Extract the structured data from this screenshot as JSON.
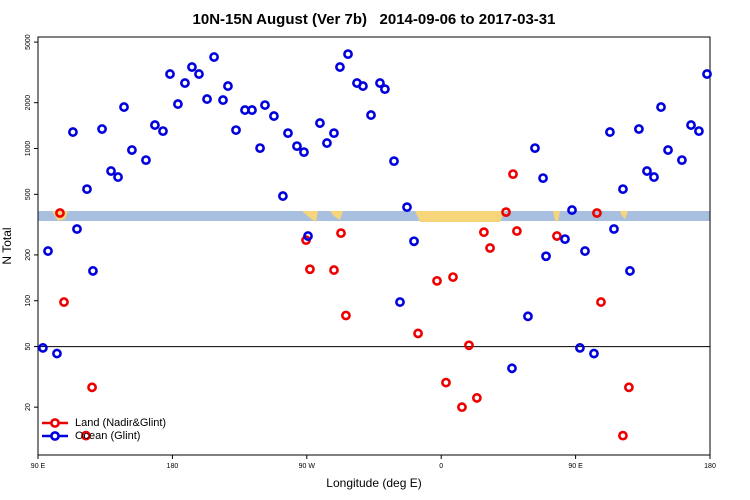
{
  "chart_data": {
    "type": "scatter",
    "title": "10N-15N August (Ver 7b)   2014-09-06 to 2017-03-31",
    "x_label": "Longitude (deg E)",
    "y_label": "N Total",
    "log_y": true,
    "xlim": [
      90,
      540
    ],
    "ylim": [
      9.7,
      5400
    ],
    "xticks": [
      {
        "value": 90,
        "label": "90 E"
      },
      180,
      {
        "value": 270,
        "label": "90 W"
      },
      {
        "value": 360,
        "label": "0"
      },
      {
        "value": 450,
        "label": "90 E"
      },
      {
        "value": 540,
        "label": "180"
      }
    ],
    "yticks": [
      20,
      50,
      100,
      200,
      500,
      1000,
      2000,
      5000
    ],
    "hline": 50,
    "legend": "bottom-left",
    "series": [
      {
        "name": "Land (Nadir&Glint)",
        "color": "#ee0000",
        "x": [
          104.7,
          107.4,
          126.2,
          122.1,
          269.5,
          272.1,
          288.2,
          292.9,
          296.2,
          344.5,
          357.2,
          363.2,
          367.9,
          373.9,
          378.6,
          383.9,
          388.6,
          392.7,
          403.4,
          408.1,
          410.7,
          437.5,
          464.3,
          467,
          485.7,
          481.7
        ],
        "values": [
          377,
          98,
          27,
          13,
          250,
          161,
          159,
          278,
          80,
          61,
          135,
          29,
          143,
          20,
          51,
          23,
          282,
          222,
          382,
          679,
          287,
          266,
          377,
          98,
          27,
          13
        ]
      },
      {
        "name": "Ocean (Glint)",
        "color": "#0000dd",
        "x": [
          93.3,
          96.7,
          102.7,
          113.4,
          116.1,
          122.8,
          126.8,
          132.9,
          138.9,
          143.6,
          147.6,
          152.9,
          162.3,
          168.3,
          173.7,
          178.4,
          183.7,
          188.4,
          193.1,
          197.8,
          203.2,
          207.9,
          213.9,
          217.2,
          222.6,
          228.6,
          233.3,
          238.7,
          242,
          248,
          254,
          257.4,
          263.4,
          268.1,
          270.8,
          278.8,
          283.5,
          288.2,
          292.2,
          297.6,
          303.6,
          307.6,
          313,
          319,
          322.3,
          328.4,
          332.4,
          337.1,
          341.8,
          407.4,
          418.1,
          422.8,
          428.2,
          430.2,
          442.9,
          447.6,
          452.9,
          456.3,
          462.3,
          473,
          475.7,
          481.7,
          486.4,
          492.4,
          497.8,
          502.5,
          507.2,
          511.9,
          521.2,
          527.3,
          532.6,
          538
        ],
        "values": [
          49,
          212,
          45,
          1282,
          296,
          541,
          157,
          1342,
          711,
          649,
          1871,
          977,
          839,
          1425,
          1301,
          3083,
          1958,
          2691,
          3428,
          3083,
          2112,
          3988,
          2080,
          2571,
          1321,
          1788,
          1788,
          1006,
          1928,
          1633,
          487,
          1262,
          1037,
          947,
          266,
          1469,
          1086,
          1262,
          3428,
          4169,
          2691,
          2571,
          1658,
          2691,
          2455,
          826,
          98,
          412,
          246,
          36,
          79,
          1006,
          639,
          196,
          254,
          394,
          49,
          212,
          45,
          1282,
          296,
          541,
          157,
          1342,
          711,
          649,
          1871,
          977,
          839,
          1425,
          1301,
          3083
        ]
      }
    ]
  }
}
